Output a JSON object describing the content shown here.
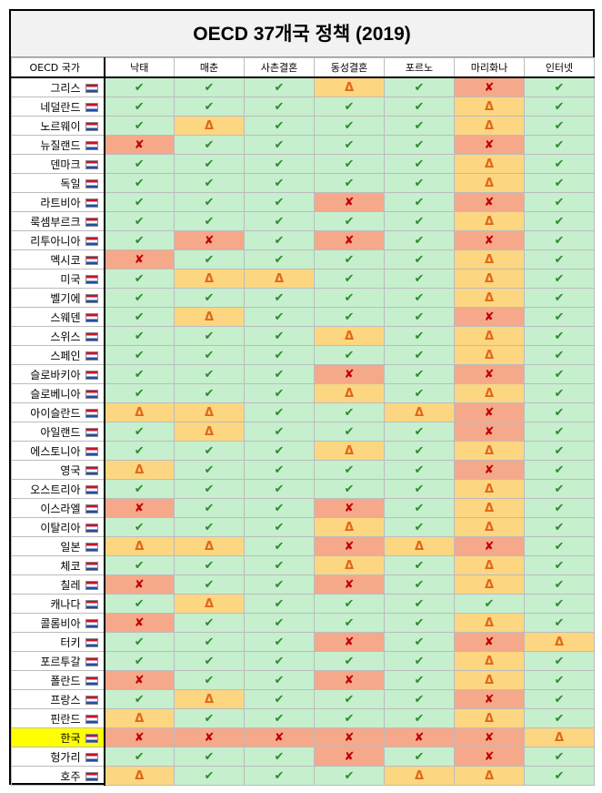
{
  "header": {
    "title": "OECD 37개국 정책 (2019)"
  },
  "table": {
    "columns": [
      "OECD 국가",
      "낙태",
      "매춘",
      "사촌결혼",
      "동성결혼",
      "포르노",
      "마리화나",
      "인터넷"
    ],
    "styles": {
      "✔": {
        "bg": "#c6efce",
        "color": "#2e8b2e"
      },
      "Δ": {
        "bg": "#fcd680",
        "color": "#e0671a"
      },
      "✘": {
        "bg": "#f5a98a",
        "color": "#c00000"
      }
    },
    "highlight": {
      "row": 34,
      "color": "#ffff00"
    },
    "rows": [
      [
        "그리스",
        "✔",
        "✔",
        "✔",
        "Δ",
        "✔",
        "✘",
        "✔"
      ],
      [
        "네덜란드",
        "✔",
        "✔",
        "✔",
        "✔",
        "✔",
        "Δ",
        "✔"
      ],
      [
        "노르웨이",
        "✔",
        "Δ",
        "✔",
        "✔",
        "✔",
        "Δ",
        "✔"
      ],
      [
        "뉴질랜드",
        "✘",
        "✔",
        "✔",
        "✔",
        "✔",
        "✘",
        "✔"
      ],
      [
        "덴마크",
        "✔",
        "✔",
        "✔",
        "✔",
        "✔",
        "Δ",
        "✔"
      ],
      [
        "독일",
        "✔",
        "✔",
        "✔",
        "✔",
        "✔",
        "Δ",
        "✔"
      ],
      [
        "라트비아",
        "✔",
        "✔",
        "✔",
        "✘",
        "✔",
        "✘",
        "✔"
      ],
      [
        "룩셈부르크",
        "✔",
        "✔",
        "✔",
        "✔",
        "✔",
        "Δ",
        "✔"
      ],
      [
        "리투아니아",
        "✔",
        "✘",
        "✔",
        "✘",
        "✔",
        "✘",
        "✔"
      ],
      [
        "멕시코",
        "✘",
        "✔",
        "✔",
        "✔",
        "✔",
        "Δ",
        "✔"
      ],
      [
        "미국",
        "✔",
        "Δ",
        "Δ",
        "✔",
        "✔",
        "Δ",
        "✔"
      ],
      [
        "벨기에",
        "✔",
        "✔",
        "✔",
        "✔",
        "✔",
        "Δ",
        "✔"
      ],
      [
        "스웨덴",
        "✔",
        "Δ",
        "✔",
        "✔",
        "✔",
        "✘",
        "✔"
      ],
      [
        "스위스",
        "✔",
        "✔",
        "✔",
        "Δ",
        "✔",
        "Δ",
        "✔"
      ],
      [
        "스페인",
        "✔",
        "✔",
        "✔",
        "✔",
        "✔",
        "Δ",
        "✔"
      ],
      [
        "슬로바키아",
        "✔",
        "✔",
        "✔",
        "✘",
        "✔",
        "✘",
        "✔"
      ],
      [
        "슬로베니아",
        "✔",
        "✔",
        "✔",
        "Δ",
        "✔",
        "Δ",
        "✔"
      ],
      [
        "아이슬란드",
        "Δ",
        "Δ",
        "✔",
        "✔",
        "Δ",
        "✘",
        "✔"
      ],
      [
        "아일랜드",
        "✔",
        "Δ",
        "✔",
        "✔",
        "✔",
        "✘",
        "✔"
      ],
      [
        "에스토니아",
        "✔",
        "✔",
        "✔",
        "Δ",
        "✔",
        "Δ",
        "✔"
      ],
      [
        "영국",
        "Δ",
        "✔",
        "✔",
        "✔",
        "✔",
        "✘",
        "✔"
      ],
      [
        "오스트리아",
        "✔",
        "✔",
        "✔",
        "✔",
        "✔",
        "Δ",
        "✔"
      ],
      [
        "이스라엘",
        "✘",
        "✔",
        "✔",
        "✘",
        "✔",
        "Δ",
        "✔"
      ],
      [
        "이탈리아",
        "✔",
        "✔",
        "✔",
        "Δ",
        "✔",
        "Δ",
        "✔"
      ],
      [
        "일본",
        "Δ",
        "Δ",
        "✔",
        "✘",
        "Δ",
        "✘",
        "✔"
      ],
      [
        "체코",
        "✔",
        "✔",
        "✔",
        "Δ",
        "✔",
        "Δ",
        "✔"
      ],
      [
        "칠레",
        "✘",
        "✔",
        "✔",
        "✘",
        "✔",
        "Δ",
        "✔"
      ],
      [
        "캐나다",
        "✔",
        "Δ",
        "✔",
        "✔",
        "✔",
        "✔",
        "✔"
      ],
      [
        "콜롬비아",
        "✘",
        "✔",
        "✔",
        "✔",
        "✔",
        "Δ",
        "✔"
      ],
      [
        "터키",
        "✔",
        "✔",
        "✔",
        "✘",
        "✔",
        "✘",
        "Δ"
      ],
      [
        "포르투갈",
        "✔",
        "✔",
        "✔",
        "✔",
        "✔",
        "Δ",
        "✔"
      ],
      [
        "폴란드",
        "✘",
        "✔",
        "✔",
        "✘",
        "✔",
        "Δ",
        "✔"
      ],
      [
        "프랑스",
        "✔",
        "Δ",
        "✔",
        "✔",
        "✔",
        "✘",
        "✔"
      ],
      [
        "핀란드",
        "Δ",
        "✔",
        "✔",
        "✔",
        "✔",
        "Δ",
        "✔"
      ],
      [
        "한국",
        "✘",
        "✘",
        "✘",
        "✘",
        "✘",
        "✘",
        "Δ"
      ],
      [
        "헝가리",
        "✔",
        "✔",
        "✔",
        "✘",
        "✔",
        "✘",
        "✔"
      ],
      [
        "호주",
        "Δ",
        "✔",
        "✔",
        "✔",
        "Δ",
        "Δ",
        "✔"
      ]
    ]
  }
}
